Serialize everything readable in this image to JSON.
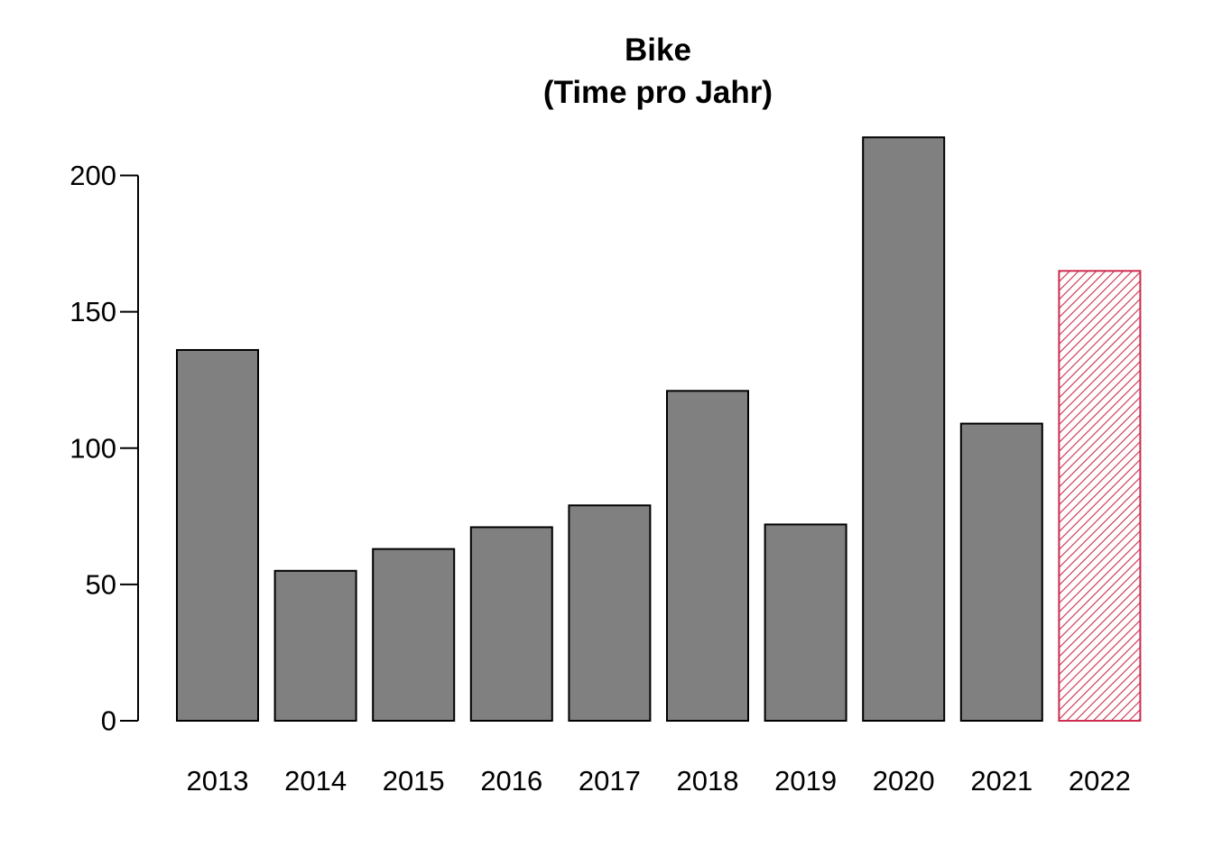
{
  "chart_data": {
    "type": "bar",
    "title": "Bike",
    "subtitle": "(Time pro Jahr)",
    "xlabel": "",
    "ylabel": "",
    "categories": [
      "2013",
      "2014",
      "2015",
      "2016",
      "2017",
      "2018",
      "2019",
      "2020",
      "2021",
      "2022"
    ],
    "values": [
      136,
      55,
      63,
      71,
      79,
      121,
      72,
      214,
      109,
      165
    ],
    "ylim": [
      0,
      214
    ],
    "yticks": [
      0,
      50,
      100,
      150,
      200
    ],
    "grid": false,
    "legend": "none",
    "colors": {
      "bar_fill": "#808080",
      "bar_stroke": "#000000",
      "highlight_hatch": "#cd2c4e",
      "axis": "#000000"
    },
    "highlight": {
      "category": "2022",
      "style": "hatched"
    }
  }
}
